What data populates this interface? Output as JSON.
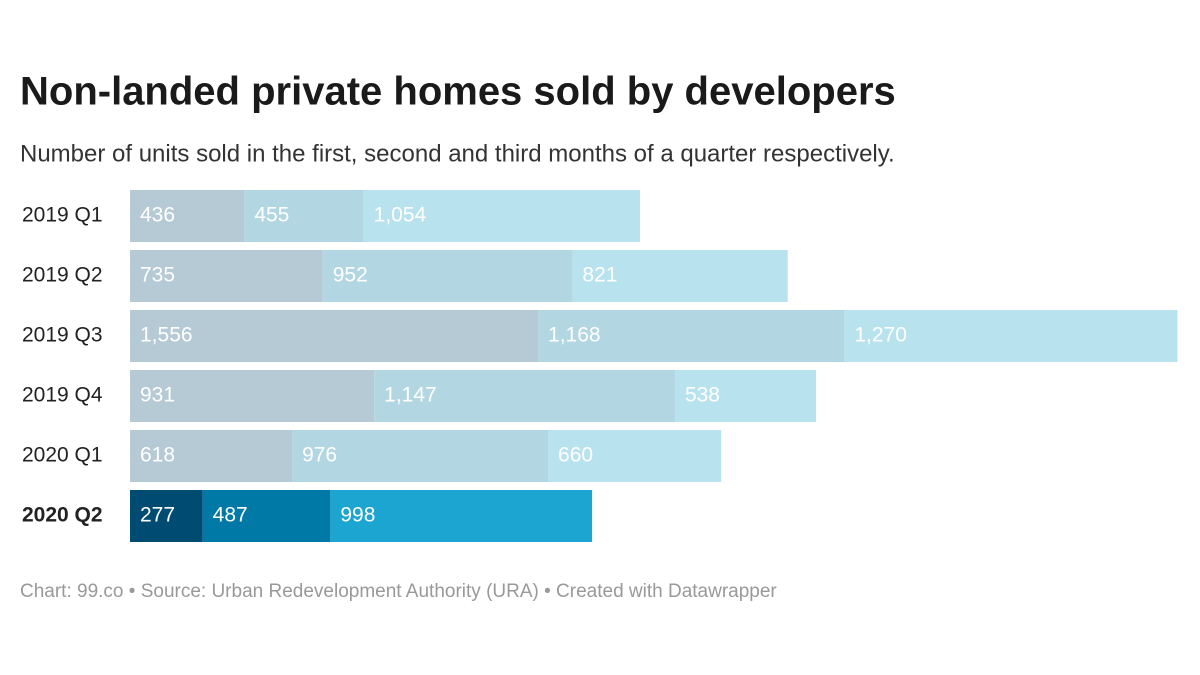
{
  "chart_data": {
    "type": "stacked-bar",
    "title": "Non-landed private homes sold by developers",
    "subtitle": "Number of units sold in the first, second and third months of a quarter respectively.",
    "categories": [
      "2019 Q1",
      "2019 Q2",
      "2019 Q3",
      "2019 Q4",
      "2020 Q1",
      "2020 Q2"
    ],
    "highlight_index": 5,
    "series": [
      {
        "colors": [
          "#b6cad5",
          "#b6cad5",
          "#b6cad5",
          "#b6cad5",
          "#b6cad5",
          "#004b72"
        ],
        "values": [
          436,
          735,
          1556,
          931,
          618,
          277
        ],
        "value_labels": [
          "436",
          "735",
          "1,556",
          "931",
          "618",
          "277"
        ]
      },
      {
        "colors": [
          "#b3d6e3",
          "#b3d6e3",
          "#b3d6e3",
          "#b3d6e3",
          "#b3d6e3",
          "#0079a7"
        ],
        "values": [
          455,
          952,
          1168,
          1147,
          976,
          487
        ],
        "value_labels": [
          "455",
          "952",
          "1,168",
          "1,147",
          "976",
          "487"
        ]
      },
      {
        "colors": [
          "#b9e2ef",
          "#b9e2ef",
          "#b9e2ef",
          "#b9e2ef",
          "#b9e2ef",
          "#1ca5d0"
        ],
        "values": [
          1054,
          821,
          1270,
          538,
          660,
          998
        ],
        "value_labels": [
          "1,054",
          "821",
          "1,270",
          "538",
          "660",
          "998"
        ]
      }
    ],
    "xlim": [
      0,
      4000
    ],
    "footer": "Chart: 99.co • Source: Urban Redevelopment Authority (URA) • Created with Datawrapper"
  }
}
